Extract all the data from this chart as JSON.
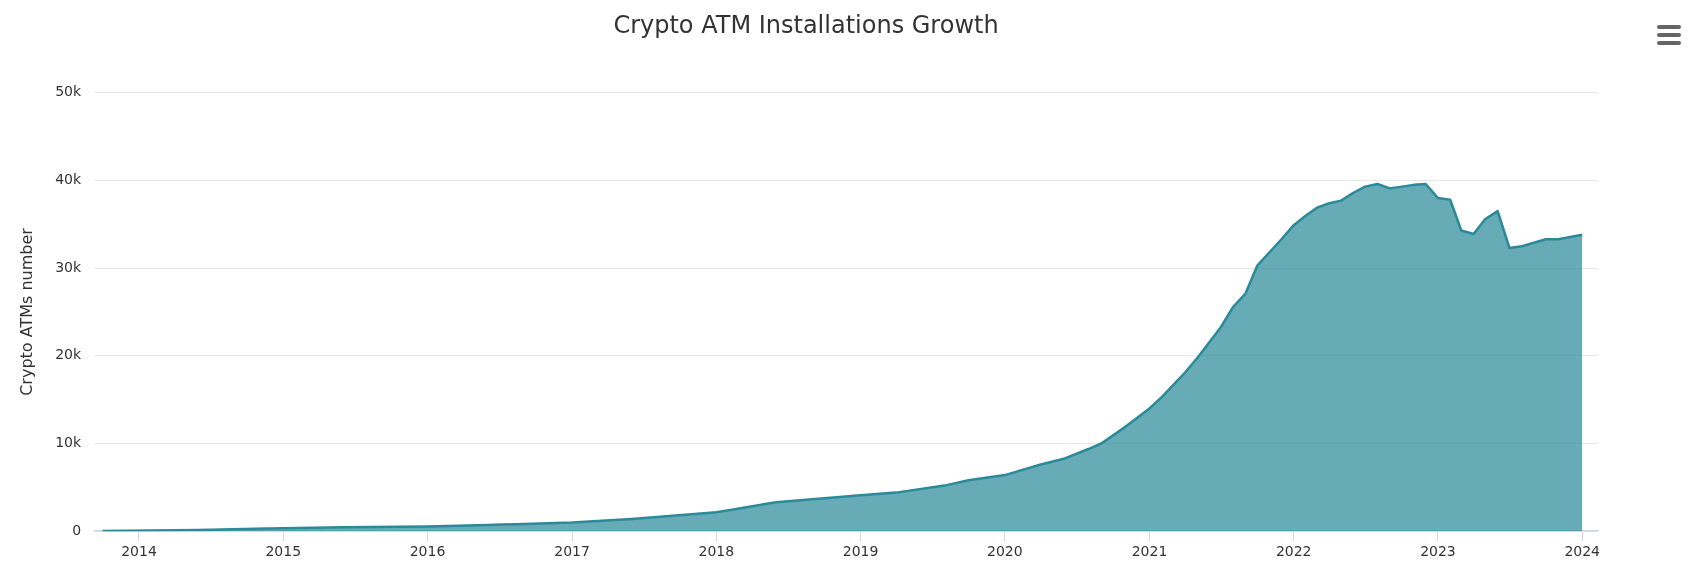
{
  "chart_data": {
    "type": "area",
    "title": "Crypto ATM Installations Growth",
    "ylabel": "Crypto ATMs number",
    "x": [
      "2013-10",
      "2014-06",
      "2015-01",
      "2015-06",
      "2016-01",
      "2016-06",
      "2017-01",
      "2017-06",
      "2018-01",
      "2018-06",
      "2019-01",
      "2019-04",
      "2019-08",
      "2019-10",
      "2020-01",
      "2020-04",
      "2020-06",
      "2020-08",
      "2020-09",
      "2020-11",
      "2021-01",
      "2021-02",
      "2021-04",
      "2021-05",
      "2021-07",
      "2021-08",
      "2021-09",
      "2021-10",
      "2021-12",
      "2022-01",
      "2022-02",
      "2022-03",
      "2022-04",
      "2022-05",
      "2022-06",
      "2022-07",
      "2022-08",
      "2022-09",
      "2022-11",
      "2022-12",
      "2023-01",
      "2023-02",
      "2023-03",
      "2023-04",
      "2023-05",
      "2023-06",
      "2023-07",
      "2023-08",
      "2023-10",
      "2023-11",
      "2024-01"
    ],
    "series": [
      {
        "color": "#2b8a99",
        "values": [
          20,
          150,
          350,
          450,
          550,
          700,
          1000,
          1400,
          2150,
          3300,
          4100,
          4400,
          5200,
          5800,
          6400,
          7600,
          8300,
          9400,
          10000,
          11900,
          14000,
          15300,
          18100,
          19700,
          23300,
          25600,
          27100,
          30300,
          33300,
          34900,
          36000,
          36900,
          37400,
          37700,
          38600,
          39300,
          39600,
          39100,
          39500,
          39600,
          38000,
          37800,
          34300,
          33900,
          35600,
          36500,
          32300,
          32500,
          33300,
          33300,
          33800
        ]
      }
    ],
    "xlim": [
      "2013-09-12",
      "2024-02-10"
    ],
    "xticks": [
      "2014",
      "2015",
      "2016",
      "2017",
      "2018",
      "2019",
      "2020",
      "2021",
      "2022",
      "2023",
      "2024"
    ],
    "ylim": [
      0,
      50000
    ],
    "yticks": [
      {
        "value": 0,
        "label": "0"
      },
      {
        "value": 10000,
        "label": "10k"
      },
      {
        "value": 20000,
        "label": "20k"
      },
      {
        "value": 30000,
        "label": "30k"
      },
      {
        "value": 40000,
        "label": "40k"
      },
      {
        "value": 50000,
        "label": "50k"
      }
    ],
    "grid": "y",
    "legend": false,
    "marker": "none"
  }
}
